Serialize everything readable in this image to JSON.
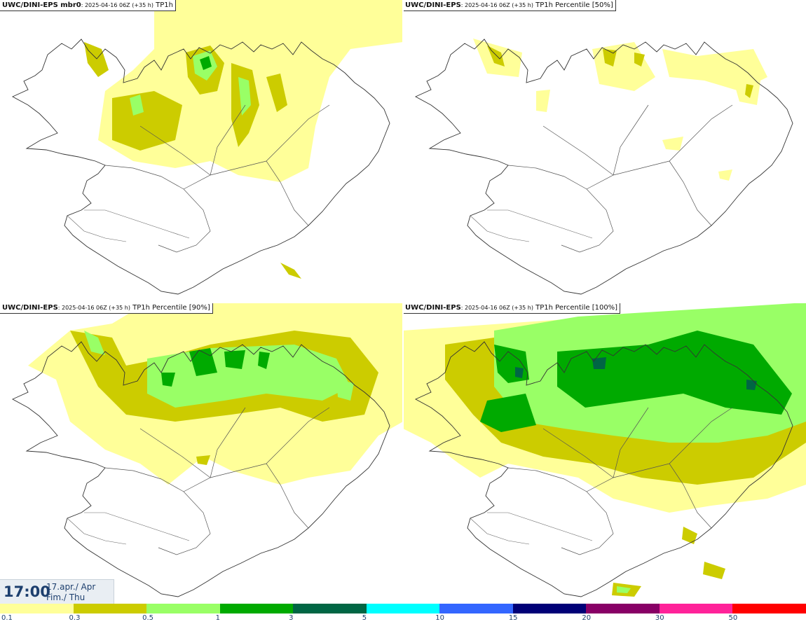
{
  "panels": [
    {
      "model": "UWC/DINI-EPS mbr0",
      "run": ": 2025-04-16 06Z (+35 h)",
      "field": " TP1h"
    },
    {
      "model": "UWC/DINI-EPS",
      "run": ": 2025-04-16 06Z (+35 h)",
      "field": " TP1h Percentile [50%]"
    },
    {
      "model": "UWC/DINI-EPS",
      "run": ": 2025-04-16 06Z (+35 h)",
      "field": " TP1h Percentile [90%]"
    },
    {
      "model": "UWC/DINI-EPS",
      "run": ": 2025-04-16 06Z (+35 h)",
      "field": " TP1h Percentile [100%]"
    }
  ],
  "valid_time": {
    "time": "17:00",
    "date_line1": "17.apr./ Apr",
    "date_line2": "Fim./ Thu"
  },
  "legend": {
    "ticks": [
      "0.1",
      "0.3",
      "0.5",
      "1",
      "3",
      "5",
      "10",
      "15",
      "20",
      "30",
      "50"
    ],
    "colors": [
      "#ffff99",
      "#cccc00",
      "#99ff66",
      "#00aa00",
      "#006644",
      "#00ffff",
      "#3366ff",
      "#000077",
      "#880066",
      "#ff2299",
      "#ff0000"
    ]
  }
}
